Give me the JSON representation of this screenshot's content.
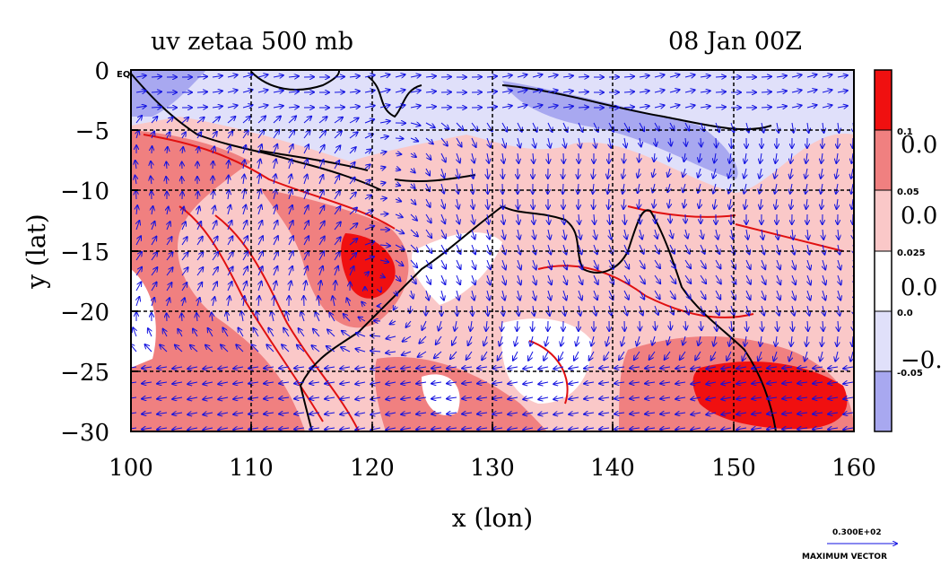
{
  "title_left": "uv zetaa 500 mb",
  "title_right": "08 Jan 00Z",
  "x_axis": {
    "label": "x (lon)",
    "range": [
      100,
      160
    ],
    "ticks": [
      "100",
      "110",
      "120",
      "130",
      "140",
      "150",
      "160"
    ]
  },
  "y_axis": {
    "label": "y (lat)",
    "range": [
      -30,
      0
    ],
    "ticks": [
      "0",
      "−5",
      "−10",
      "−15",
      "−20",
      "−25",
      "−30"
    ],
    "top_tick_suffix": "EQ"
  },
  "colorbar": {
    "levels": [
      "0.1",
      "0.05",
      "0.025",
      "0.0",
      "-0.05"
    ],
    "big_labels": [
      "0.0",
      "0.0",
      "0.0",
      "−0."
    ],
    "colors": [
      "#f01010",
      "#f08080",
      "#fac8c8",
      "#ffffff",
      "#e0e0fa",
      "#a8a8f0"
    ]
  },
  "vector_legend": {
    "magnitude": "0.300E+02",
    "label": "MAXIMUM VECTOR"
  },
  "colors": {
    "land_line": "#000000",
    "vector": "#1010e0",
    "contour": "#e01010"
  }
}
